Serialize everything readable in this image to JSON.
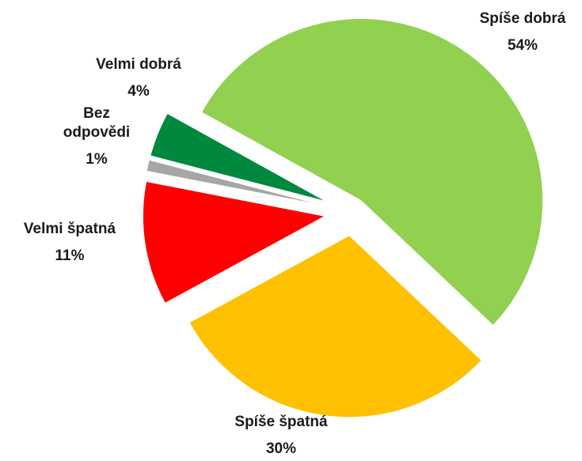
{
  "chart_data": {
    "type": "pie",
    "categories": [
      "Spíše dobrá",
      "Spíše špatná",
      "Velmi špatná",
      "Bez odpovědi",
      "Velmi dobrá"
    ],
    "values": [
      54,
      30,
      11,
      1,
      4
    ],
    "value_labels": [
      "54%",
      "30%",
      "11%",
      "1%",
      "4%"
    ],
    "colors": [
      "#92d050",
      "#ffc000",
      "#ff0000",
      "#a6a6a6",
      "#00883e"
    ]
  }
}
